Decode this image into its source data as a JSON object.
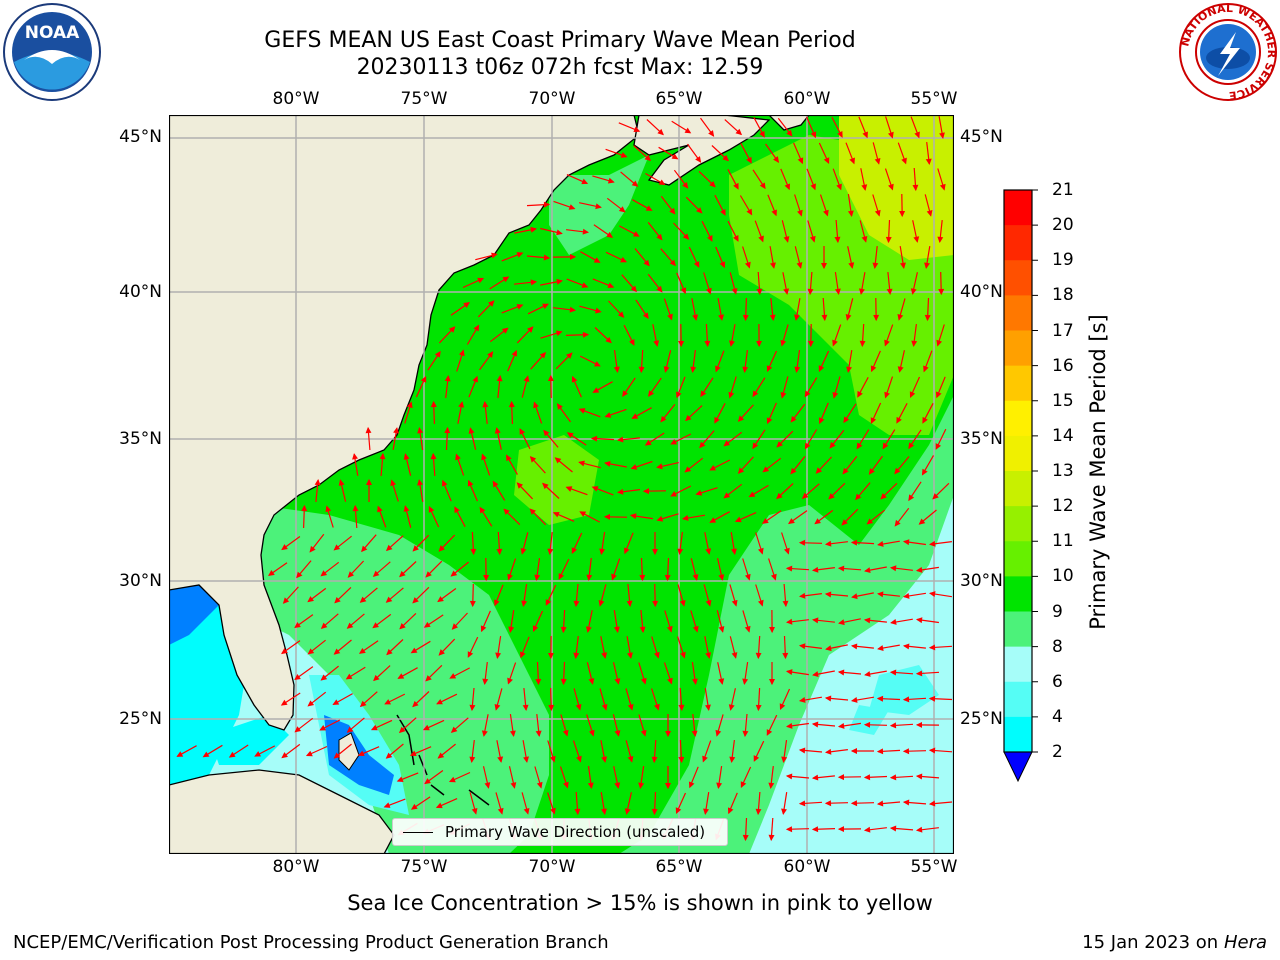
{
  "header": {
    "title_line1": "GEFS MEAN US East Coast Primary Wave Mean Period",
    "title_line2": "20230113 t06z 072h fcst   Max: 12.59"
  },
  "logos": {
    "left": {
      "text": "NOAA",
      "icon": "noaa-logo-icon"
    },
    "right": {
      "text": "NATIONAL WEATHER SERVICE",
      "icon": "nws-logo-icon"
    }
  },
  "map": {
    "lon_ticks": [
      "80°W",
      "75°W",
      "70°W",
      "65°W",
      "60°W",
      "55°W"
    ],
    "lat_ticks": [
      "45°N",
      "40°N",
      "35°N",
      "30°N",
      "25°N"
    ],
    "land_color": "#efedda",
    "ocean_palette": {
      "green11": "#00e400",
      "green10": "#4cf27a",
      "green12": "#66f000",
      "lime13": "#c8f000",
      "cyan9": "#a6fdf9",
      "cyan8": "#55fdf5",
      "cyan6": "#00fdfd",
      "blue4": "#0080ff"
    },
    "arrow_color": "#ff0000"
  },
  "legend": {
    "label": "Primary Wave Direction (unscaled)"
  },
  "colorbar": {
    "label": "Primary Wave Mean Period [s]",
    "ticks": [
      "21",
      "20",
      "19",
      "18",
      "17",
      "16",
      "15",
      "14",
      "13",
      "12",
      "11",
      "10",
      "9",
      "8",
      "6",
      "4",
      "2"
    ],
    "colors": [
      "#ff0000",
      "#ff2800",
      "#ff5000",
      "#ff7800",
      "#ffa000",
      "#ffc800",
      "#fff000",
      "#f0f000",
      "#c8f000",
      "#96f000",
      "#66f000",
      "#00e400",
      "#4cf27a",
      "#a6fdf9",
      "#55fdf5",
      "#00fdfd",
      "#0080ff"
    ],
    "extend_color": "#0000ff"
  },
  "footer": {
    "ice_note": "Sea Ice Concentration > 15% is shown in pink to yellow",
    "branch": "NCEP/EMC/Verification Post Processing Product Generation Branch",
    "date_prefix": "15 Jan 2023 on ",
    "machine": "Hera"
  }
}
